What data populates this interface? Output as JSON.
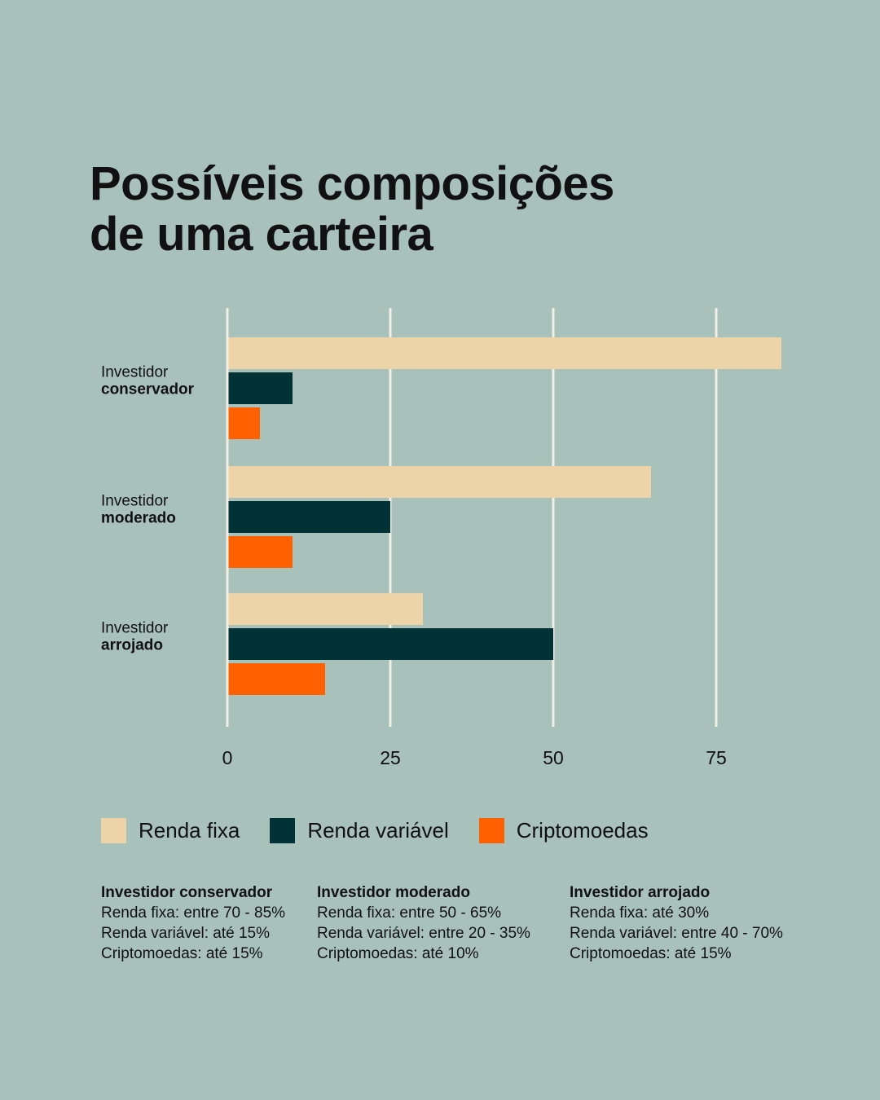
{
  "title": {
    "line1": "Possíveis composições",
    "line2": "de uma carteira"
  },
  "colors": {
    "background": "#a9c1bb",
    "renda_fixa": "#edd3a8",
    "renda_variavel": "#013235",
    "criptomoedas": "#ff6100",
    "gridline": "#f2efe6"
  },
  "chart_data": {
    "type": "bar",
    "orientation": "horizontal",
    "categories": [
      {
        "line1": "Investidor",
        "line2": "conservador"
      },
      {
        "line1": "Investidor",
        "line2": "moderado"
      },
      {
        "line1": "Investidor",
        "line2": "arrojado"
      }
    ],
    "series": [
      {
        "name": "Renda fixa",
        "color": "#edd3a8",
        "values": [
          85,
          65,
          30
        ]
      },
      {
        "name": "Renda variável",
        "color": "#013235",
        "values": [
          10,
          25,
          50
        ]
      },
      {
        "name": "Criptomoedas",
        "color": "#ff6100",
        "values": [
          5,
          10,
          15
        ]
      }
    ],
    "xticks": [
      "0",
      "25",
      "50",
      "75"
    ],
    "xlim": [
      0,
      85
    ],
    "grid": true,
    "legend_position": "bottom"
  },
  "legend": [
    {
      "label": "Renda fixa",
      "color": "#edd3a8"
    },
    {
      "label": "Renda variável",
      "color": "#013235"
    },
    {
      "label": "Criptomoedas",
      "color": "#ff6100"
    }
  ],
  "notes": [
    {
      "title": "Investidor conservador",
      "lines": [
        "Renda fixa: entre 70 - 85%",
        "Renda variável: até 15%",
        "Criptomoedas: até 15%"
      ]
    },
    {
      "title": "Investidor moderado",
      "lines": [
        "Renda fixa: entre 50 - 65%",
        "Renda variável: entre 20 - 35%",
        "Criptomoedas: até 10%"
      ]
    },
    {
      "title": "Investidor arrojado",
      "lines": [
        "Renda fixa: até 30%",
        "Renda variável: entre 40 - 70%",
        "Criptomoedas: até 15%"
      ]
    }
  ]
}
